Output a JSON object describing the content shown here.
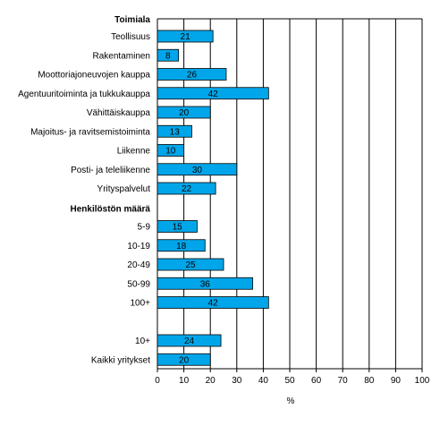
{
  "chart_data": {
    "type": "bar",
    "orientation": "horizontal",
    "xlabel": "%",
    "xlim": [
      0,
      100
    ],
    "xticks": [
      0,
      10,
      20,
      30,
      40,
      50,
      60,
      70,
      80,
      90,
      100
    ],
    "grid": "vertical lines at major ticks",
    "bar_color": "#00a6e9",
    "groups": [
      {
        "heading": "Toimiala",
        "categories": [
          "Teollisuus",
          "Rakentaminen",
          "Moottoriajoneuvojen kauppa",
          "Agentuuritoiminta ja tukkukauppa",
          "Vähittäiskauppa",
          "Majoitus- ja ravitsemistoiminta",
          "Liikenne",
          "Posti- ja teleliikenne",
          "Yrityspalvelut"
        ],
        "values": [
          21,
          8,
          26,
          42,
          20,
          13,
          10,
          30,
          22
        ]
      },
      {
        "heading": "Henkilöstön määrä",
        "categories": [
          "5-9",
          "10-19",
          "20-49",
          "50-99",
          "100+"
        ],
        "values": [
          15,
          18,
          25,
          36,
          42
        ]
      },
      {
        "heading": "",
        "categories": [
          "10+",
          "Kaikki yritykset"
        ],
        "values": [
          24,
          20
        ]
      }
    ]
  }
}
